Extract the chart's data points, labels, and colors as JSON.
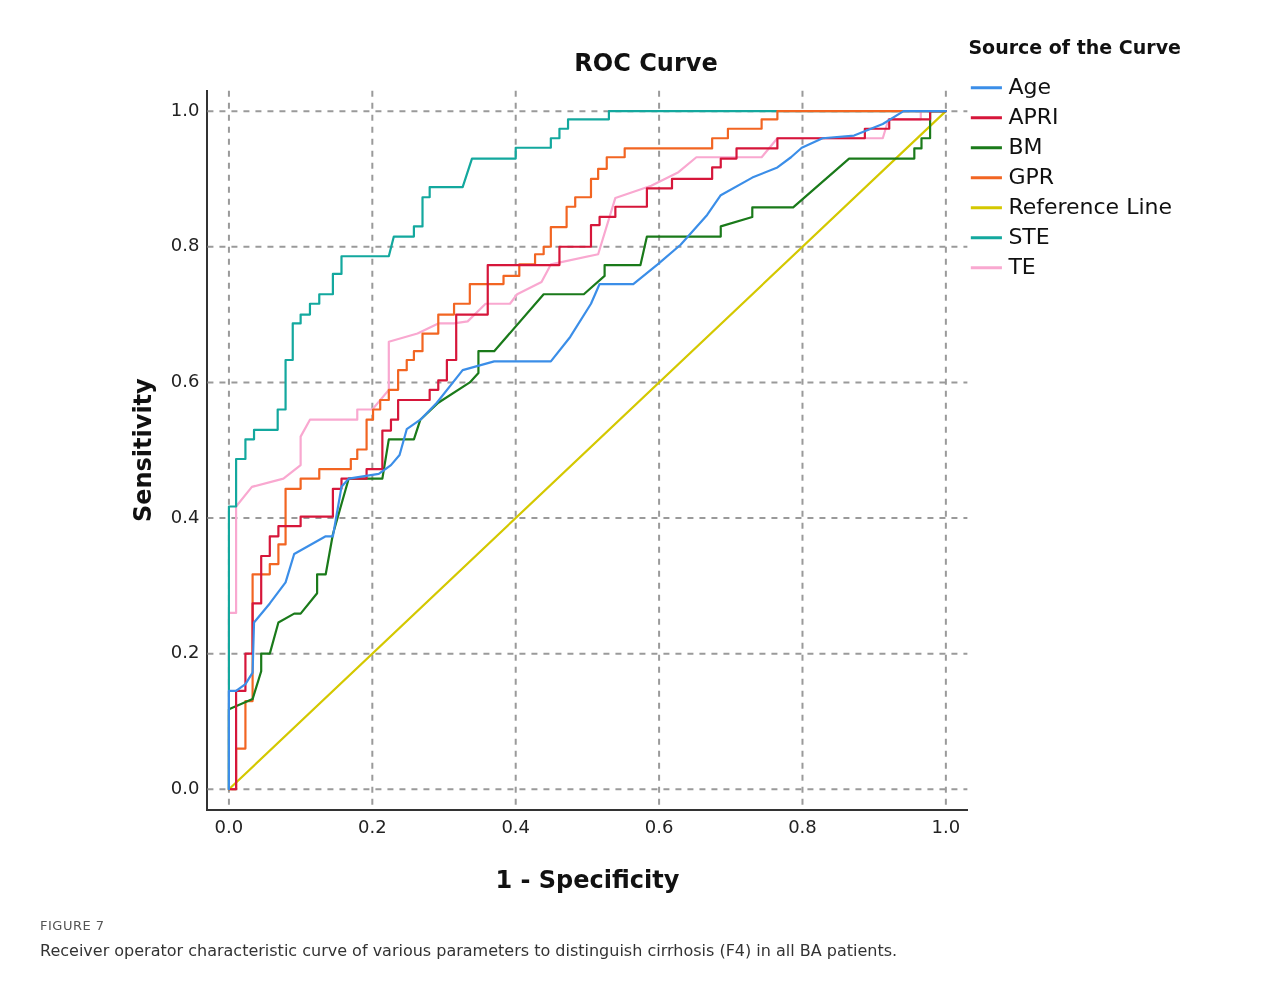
{
  "chart_data": {
    "type": "line",
    "title": "ROC Curve",
    "xlabel": "1 - Specificity",
    "ylabel": "Sensitivity",
    "legend_title": "Source of the Curve",
    "legend": "right",
    "grid": true,
    "marker": "none",
    "line_style": "solid",
    "xlim": [
      -0.03,
      1.03
    ],
    "ylim": [
      -0.03,
      1.03
    ],
    "xticks": [
      {
        "value": 0,
        "label": "0.0"
      },
      {
        "value": 0.2,
        "label": "0.2"
      },
      {
        "value": 0.4,
        "label": "0.4"
      },
      {
        "value": 0.6,
        "label": "0.6"
      },
      {
        "value": 0.8,
        "label": "0.8"
      },
      {
        "value": 1,
        "label": "1.0"
      }
    ],
    "yticks": [
      {
        "value": 0,
        "label": "0.0"
      },
      {
        "value": 0.2,
        "label": "0.2"
      },
      {
        "value": 0.4,
        "label": "0.4"
      },
      {
        "value": 0.6,
        "label": "0.6"
      },
      {
        "value": 0.8,
        "label": "0.8"
      },
      {
        "value": 1,
        "label": "1.0"
      }
    ],
    "series": [
      {
        "name": "Age",
        "color": "#3b8ee8",
        "x": [
          0,
          0,
          0.01,
          0.023,
          0.033,
          0.035,
          0.057,
          0.079,
          0.091,
          0.135,
          0.145,
          0.157,
          0.167,
          0.209,
          0.226,
          0.238,
          0.248,
          0.267,
          0.29,
          0.326,
          0.37,
          0.449,
          0.476,
          0.505,
          0.517,
          0.564,
          0.598,
          0.63,
          0.667,
          0.686,
          0.73,
          0.765,
          0.784,
          0.799,
          0.828,
          0.872,
          0.912,
          0.941,
          1
        ],
        "values": [
          0,
          0.145,
          0.145,
          0.155,
          0.172,
          0.246,
          0.274,
          0.305,
          0.347,
          0.373,
          0.373,
          0.446,
          0.458,
          0.465,
          0.478,
          0.493,
          0.531,
          0.545,
          0.57,
          0.618,
          0.631,
          0.631,
          0.667,
          0.716,
          0.745,
          0.745,
          0.774,
          0.803,
          0.847,
          0.876,
          0.902,
          0.917,
          0.932,
          0.946,
          0.96,
          0.964,
          0.981,
          1,
          1
        ]
      },
      {
        "name": "APRI",
        "color": "#d6163a",
        "x": [
          0,
          0.01,
          0.01,
          0.023,
          0.023,
          0.033,
          0.033,
          0.045,
          0.045,
          0.057,
          0.057,
          0.069,
          0.069,
          0.1,
          0.1,
          0.145,
          0.145,
          0.157,
          0.157,
          0.192,
          0.192,
          0.214,
          0.214,
          0.226,
          0.226,
          0.236,
          0.236,
          0.28,
          0.28,
          0.292,
          0.292,
          0.304,
          0.304,
          0.317,
          0.317,
          0.361,
          0.361,
          0.461,
          0.461,
          0.505,
          0.505,
          0.517,
          0.517,
          0.539,
          0.539,
          0.583,
          0.583,
          0.618,
          0.618,
          0.674,
          0.674,
          0.686,
          0.686,
          0.708,
          0.708,
          0.765,
          0.765,
          0.887,
          0.887,
          0.921,
          0.921,
          0.978,
          0.978,
          1
        ],
        "values": [
          0,
          0,
          0.145,
          0.145,
          0.2,
          0.2,
          0.274,
          0.274,
          0.344,
          0.344,
          0.373,
          0.373,
          0.388,
          0.388,
          0.402,
          0.402,
          0.443,
          0.443,
          0.458,
          0.458,
          0.472,
          0.472,
          0.529,
          0.529,
          0.545,
          0.545,
          0.574,
          0.574,
          0.589,
          0.589,
          0.603,
          0.603,
          0.633,
          0.633,
          0.7,
          0.7,
          0.773,
          0.773,
          0.8,
          0.8,
          0.832,
          0.832,
          0.844,
          0.844,
          0.859,
          0.859,
          0.886,
          0.886,
          0.9,
          0.9,
          0.917,
          0.917,
          0.93,
          0.93,
          0.945,
          0.945,
          0.96,
          0.96,
          0.974,
          0.974,
          0.988,
          0.988,
          1,
          1
        ]
      },
      {
        "name": "BM",
        "color": "#1a7a1a",
        "x": [
          0,
          0,
          0.033,
          0.045,
          0.045,
          0.057,
          0.069,
          0.091,
          0.1,
          0.123,
          0.123,
          0.135,
          0.145,
          0.167,
          0.214,
          0.223,
          0.258,
          0.267,
          0.292,
          0.336,
          0.348,
          0.348,
          0.37,
          0.439,
          0.495,
          0.524,
          0.524,
          0.574,
          0.583,
          0.686,
          0.686,
          0.73,
          0.73,
          0.787,
          0.865,
          0.956,
          0.956,
          0.966,
          0.966,
          0.978,
          0.978,
          1
        ],
        "values": [
          0,
          0.118,
          0.133,
          0.174,
          0.2,
          0.2,
          0.246,
          0.259,
          0.259,
          0.289,
          0.317,
          0.317,
          0.376,
          0.458,
          0.458,
          0.516,
          0.516,
          0.545,
          0.57,
          0.6,
          0.614,
          0.646,
          0.646,
          0.73,
          0.73,
          0.757,
          0.773,
          0.773,
          0.815,
          0.815,
          0.83,
          0.844,
          0.858,
          0.858,
          0.93,
          0.93,
          0.945,
          0.945,
          0.96,
          0.96,
          1,
          1
        ]
      },
      {
        "name": "GPR",
        "color": "#f26522",
        "x": [
          0,
          0.01,
          0.01,
          0.023,
          0.023,
          0.033,
          0.033,
          0.057,
          0.057,
          0.069,
          0.069,
          0.079,
          0.079,
          0.1,
          0.1,
          0.126,
          0.126,
          0.17,
          0.17,
          0.179,
          0.179,
          0.192,
          0.192,
          0.201,
          0.201,
          0.211,
          0.211,
          0.223,
          0.223,
          0.236,
          0.236,
          0.248,
          0.248,
          0.258,
          0.258,
          0.27,
          0.27,
          0.292,
          0.292,
          0.314,
          0.314,
          0.336,
          0.336,
          0.383,
          0.383,
          0.405,
          0.405,
          0.427,
          0.427,
          0.439,
          0.439,
          0.449,
          0.449,
          0.471,
          0.471,
          0.483,
          0.483,
          0.505,
          0.505,
          0.515,
          0.515,
          0.527,
          0.527,
          0.552,
          0.552,
          0.674,
          0.674,
          0.696,
          0.696,
          0.743,
          0.743,
          0.765,
          0.765,
          1
        ],
        "values": [
          0,
          0,
          0.06,
          0.06,
          0.13,
          0.13,
          0.317,
          0.317,
          0.332,
          0.332,
          0.361,
          0.361,
          0.443,
          0.443,
          0.458,
          0.458,
          0.472,
          0.472,
          0.487,
          0.487,
          0.501,
          0.501,
          0.545,
          0.545,
          0.56,
          0.56,
          0.574,
          0.574,
          0.589,
          0.589,
          0.618,
          0.618,
          0.633,
          0.633,
          0.646,
          0.646,
          0.672,
          0.672,
          0.7,
          0.7,
          0.716,
          0.716,
          0.745,
          0.745,
          0.757,
          0.757,
          0.774,
          0.774,
          0.789,
          0.789,
          0.8,
          0.8,
          0.829,
          0.829,
          0.859,
          0.859,
          0.873,
          0.873,
          0.9,
          0.9,
          0.915,
          0.915,
          0.932,
          0.932,
          0.945,
          0.945,
          0.96,
          0.96,
          0.974,
          0.974,
          0.988,
          0.988,
          1,
          1
        ]
      },
      {
        "name": "Reference Line",
        "color": "#d4c800",
        "x": [
          0,
          1
        ],
        "values": [
          0,
          1
        ]
      },
      {
        "name": "STE",
        "color": "#13a89e",
        "x": [
          0,
          0,
          0.01,
          0.01,
          0.023,
          0.023,
          0.035,
          0.035,
          0.068,
          0.068,
          0.079,
          0.079,
          0.089,
          0.089,
          0.1,
          0.1,
          0.113,
          0.113,
          0.126,
          0.126,
          0.145,
          0.145,
          0.157,
          0.157,
          0.223,
          0.23,
          0.258,
          0.258,
          0.27,
          0.27,
          0.28,
          0.28,
          0.326,
          0.339,
          0.4,
          0.4,
          0.449,
          0.449,
          0.461,
          0.461,
          0.473,
          0.473,
          0.53,
          0.53,
          1
        ],
        "values": [
          0,
          0.417,
          0.417,
          0.487,
          0.487,
          0.516,
          0.516,
          0.53,
          0.53,
          0.56,
          0.56,
          0.633,
          0.633,
          0.687,
          0.687,
          0.7,
          0.7,
          0.716,
          0.716,
          0.73,
          0.73,
          0.76,
          0.76,
          0.786,
          0.786,
          0.815,
          0.815,
          0.83,
          0.83,
          0.873,
          0.873,
          0.888,
          0.888,
          0.93,
          0.93,
          0.946,
          0.946,
          0.96,
          0.96,
          0.974,
          0.974,
          0.988,
          0.988,
          1,
          1
        ]
      },
      {
        "name": "TE",
        "color": "#f9a8d0",
        "x": [
          0,
          0,
          0.01,
          0.01,
          0.032,
          0.076,
          0.1,
          0.1,
          0.113,
          0.179,
          0.179,
          0.2,
          0.223,
          0.223,
          0.263,
          0.292,
          0.314,
          0.333,
          0.358,
          0.392,
          0.402,
          0.436,
          0.449,
          0.515,
          0.539,
          0.589,
          0.627,
          0.652,
          0.743,
          0.765,
          0.912,
          0.92,
          0.965,
          0.965,
          1
        ],
        "values": [
          0,
          0.26,
          0.26,
          0.417,
          0.446,
          0.458,
          0.478,
          0.52,
          0.545,
          0.545,
          0.56,
          0.56,
          0.589,
          0.66,
          0.672,
          0.687,
          0.687,
          0.69,
          0.716,
          0.716,
          0.73,
          0.748,
          0.774,
          0.789,
          0.872,
          0.89,
          0.91,
          0.932,
          0.932,
          0.96,
          0.96,
          0.988,
          0.988,
          1,
          1
        ]
      }
    ],
    "annotations": [
      "FIGURE 7",
      "Receiver operator characteristic curve of various parameters to distinguish cirrhosis (F4) in all BA patients."
    ]
  }
}
